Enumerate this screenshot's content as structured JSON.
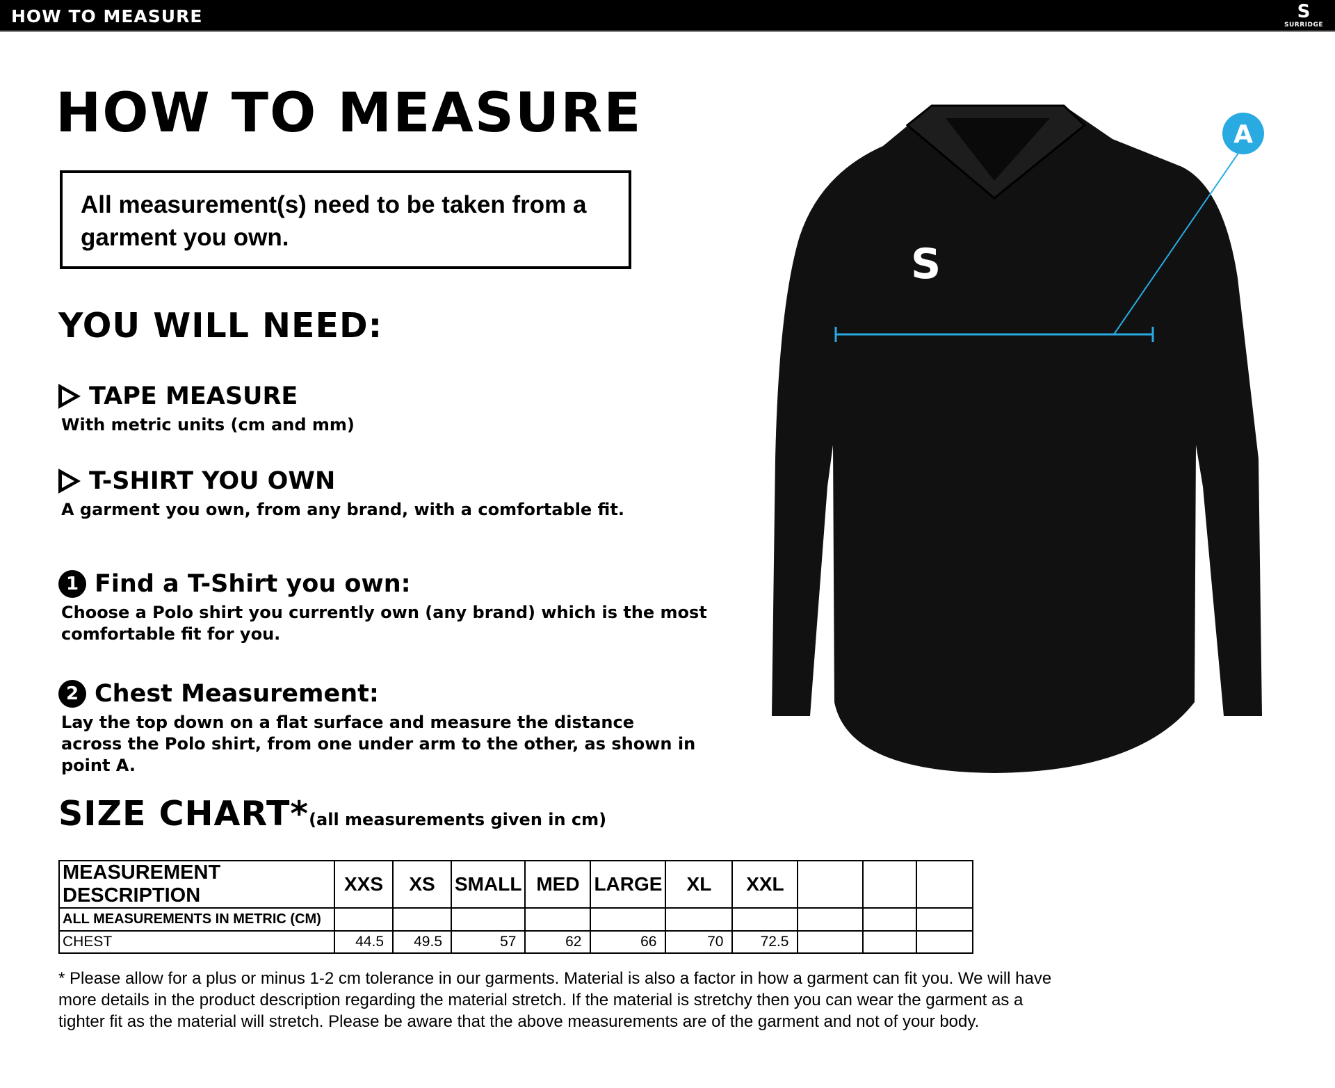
{
  "header": {
    "title": "HOW TO MEASURE",
    "brand": "SURRIDGE"
  },
  "main": {
    "title": "HOW TO MEASURE",
    "note": "All measurement(s) need to be taken from a garment you own.",
    "need_heading": "YOU WILL NEED:",
    "needs": [
      {
        "title": "TAPE MEASURE",
        "desc": "With metric units (cm and mm)"
      },
      {
        "title": "T-SHIRT YOU OWN",
        "desc": "A garment you own, from any brand, with a comfortable fit."
      }
    ],
    "steps": [
      {
        "num": "1",
        "title": "Find a T-Shirt you own:",
        "desc": "Choose a Polo shirt you currently own (any brand) which is the most comfortable fit for you."
      },
      {
        "num": "2",
        "title": "Chest Measurement:",
        "desc": "Lay the top down on a flat surface and measure the distance across the Polo shirt, from one under arm to the other, as shown in point A."
      }
    ],
    "size_chart": {
      "title": "SIZE CHART*",
      "subtitle": "(all measurements given in cm)",
      "headers": [
        "MEASUREMENT DESCRIPTION",
        "XXS",
        "XS",
        "SMALL",
        "MED",
        "LARGE",
        "XL",
        "XXL",
        "",
        "",
        ""
      ],
      "rows": [
        [
          "ALL MEASUREMENTS IN METRIC (CM)",
          "",
          "",
          "",
          "",
          "",
          "",
          "",
          "",
          "",
          ""
        ],
        [
          "CHEST",
          "44.5",
          "49.5",
          "57",
          "62",
          "66",
          "70",
          "72.5",
          "",
          "",
          ""
        ]
      ]
    },
    "footnote": "* Please allow for a plus or minus 1-2 cm tolerance in our garments. Material is also a factor in how a garment can fit you. We will have more details in the product description regarding the material stretch.  If the material is stretchy then you can wear the garment as a tighter fit as the material will stretch.  Please be aware that the above measurements are of the garment and not of your body.",
    "diagram": {
      "point_label": "A",
      "accent": "#29abe2"
    }
  }
}
